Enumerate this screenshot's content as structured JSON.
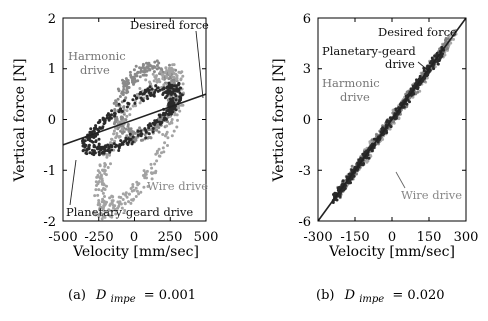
{
  "chart_data": [
    {
      "type": "scatter",
      "panel": "a",
      "caption_prefix": "(a)",
      "caption_symbol": "D",
      "caption_subscript": "impe",
      "caption_value": "= 0.001",
      "xlabel": "Velocity [mm/sec]",
      "ylabel": "Vertical force [N]",
      "xlim": [
        -500,
        500
      ],
      "ylim": [
        -2,
        2
      ],
      "xticks": [
        "-500",
        "-250",
        "0",
        "250",
        "500"
      ],
      "yticks": [
        "-2",
        "-1",
        "0",
        "1",
        "2"
      ],
      "desired_line": {
        "label": "Desired force",
        "x": [
          -500,
          500
        ],
        "y": [
          -0.5,
          0.5
        ]
      },
      "annotations": [
        {
          "text": "Desired force",
          "color": "#111111"
        },
        {
          "text_lines": [
            "Harmonic",
            "drive"
          ],
          "color": "#777777"
        },
        {
          "text": "Wire drive",
          "color": "#888888"
        },
        {
          "text": "Planetary-geard drive",
          "color": "#111111"
        }
      ],
      "series": [
        {
          "group": "harmonic",
          "color": "#8a8a8a",
          "loop": {
            "cx": 80,
            "cy": 0.35,
            "rx": 230,
            "ry": 0.75,
            "tilt": 0.001
          }
        },
        {
          "group": "wire",
          "color": "#a3a3a3",
          "loop": {
            "cx": 30,
            "cy": -0.45,
            "rx": 320,
            "ry": 1.05,
            "tilt": 0.0035
          }
        },
        {
          "group": "planetary",
          "color": "#2a2a2a",
          "loop": {
            "cx": -10,
            "cy": 0.0,
            "rx": 360,
            "ry": 0.45,
            "tilt": 0.0015
          }
        }
      ]
    },
    {
      "type": "scatter",
      "panel": "b",
      "caption_prefix": "(b)",
      "caption_symbol": "D",
      "caption_subscript": "impe",
      "caption_value": "= 0.020",
      "xlabel": "Velocity [mm/sec]",
      "ylabel": "Vertical force [N]",
      "xlim": [
        -300,
        300
      ],
      "ylim": [
        -6,
        6
      ],
      "xticks": [
        "-300",
        "-150",
        "0",
        "150",
        "300"
      ],
      "yticks": [
        "-6",
        "-3",
        "0",
        "3",
        "6"
      ],
      "desired_line": {
        "label": "Desired force",
        "x": [
          -300,
          300
        ],
        "y": [
          -6,
          6
        ]
      },
      "annotations": [
        {
          "text": "Desired force",
          "color": "#111111"
        },
        {
          "text_lines": [
            "Planetary-geard",
            "drive"
          ],
          "color": "#111111"
        },
        {
          "text_lines": [
            "Harmonic",
            "drive"
          ],
          "color": "#777777"
        },
        {
          "text": "Wire drive",
          "color": "#888888"
        }
      ],
      "series": [
        {
          "group": "wire",
          "color": "#a8a8a8",
          "band": {
            "x_from": -220,
            "x_to": 260,
            "slope": 0.02,
            "spread": 0.6
          }
        },
        {
          "group": "harmonic",
          "color": "#808080",
          "band": {
            "x_from": -230,
            "x_to": 230,
            "slope": 0.02,
            "spread": 0.55
          }
        },
        {
          "group": "planetary",
          "color": "#2a2a2a",
          "band": {
            "x_from": -240,
            "x_to": 210,
            "slope": 0.02,
            "spread": 0.5
          }
        }
      ]
    }
  ]
}
